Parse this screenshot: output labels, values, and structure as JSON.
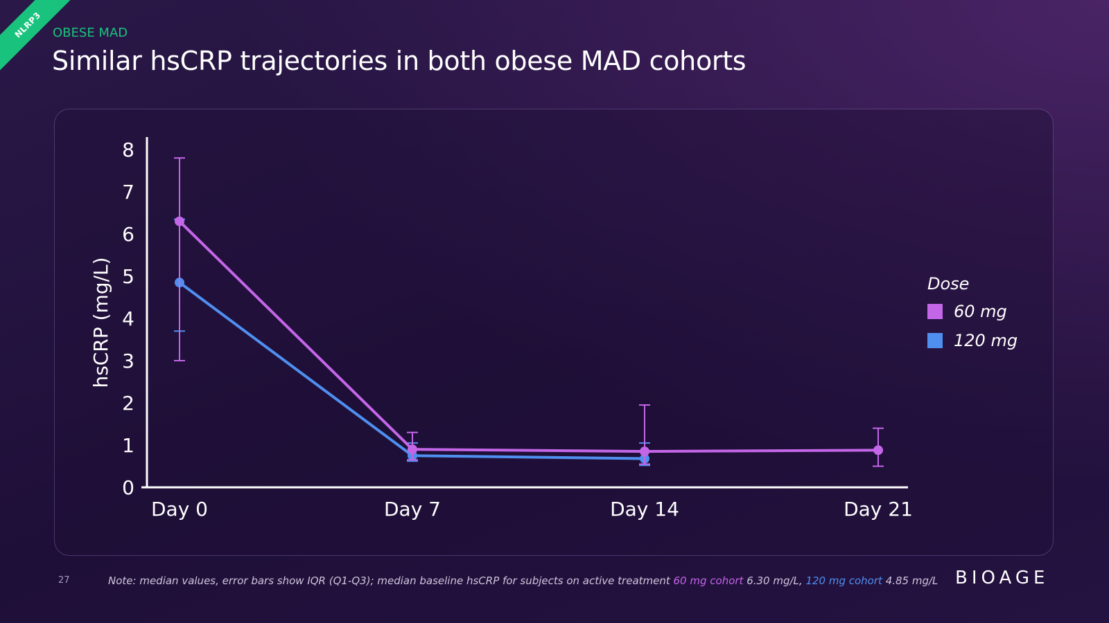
{
  "corner_tag": "NLRP3",
  "eyebrow": "OBESE MAD",
  "title": "Similar hsCRP trajectories in both obese MAD cohorts",
  "slide_number": "27",
  "note": {
    "prefix": "Note: median values, error bars show IQR (Q1-Q3); median baseline hsCRP for subjects on active treatment ",
    "cohort60_label": "60 mg cohort",
    "cohort60_value": " 6.30 mg/L, ",
    "cohort120_label": "120 mg cohort",
    "cohort120_value": " 4.85 mg/L"
  },
  "logo": "BIOAGE",
  "colors": {
    "accent_green": "#19c37d",
    "series_60": "#c466e8",
    "series_120": "#4f8ff0"
  },
  "chart_data": {
    "type": "line",
    "ylabel": "hsCRP (mg/L)",
    "xlabel": "",
    "ylim": [
      0,
      8
    ],
    "yticks": [
      0,
      1,
      2,
      3,
      4,
      5,
      6,
      7,
      8
    ],
    "categories": [
      "Day 0",
      "Day 7",
      "Day 14",
      "Day 21"
    ],
    "legend": {
      "title": "Dose",
      "placement": "right"
    },
    "series": [
      {
        "name": "60 mg",
        "color": "#c466e8",
        "values": [
          6.3,
          0.9,
          0.85,
          0.88
        ],
        "iqr_low": [
          3.0,
          0.65,
          0.55,
          0.5
        ],
        "iqr_high": [
          7.8,
          1.3,
          1.95,
          1.4
        ]
      },
      {
        "name": "120 mg",
        "color": "#4f8ff0",
        "values": [
          4.85,
          0.75,
          0.68,
          null
        ],
        "iqr_low": [
          3.7,
          0.62,
          0.52,
          null
        ],
        "iqr_high": [
          6.35,
          1.05,
          1.05,
          null
        ]
      }
    ]
  }
}
